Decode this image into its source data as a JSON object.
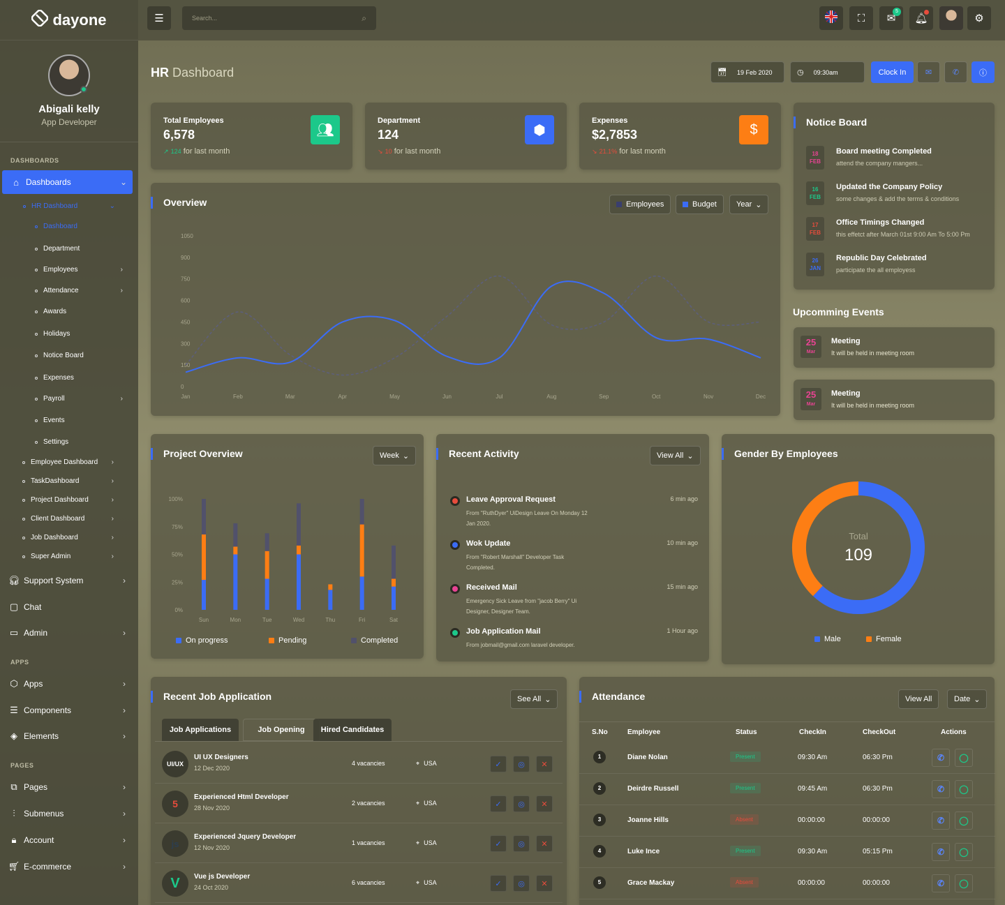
{
  "app": {
    "brand": "dayone"
  },
  "user": {
    "name": "Abigali kelly",
    "role": "App Developer"
  },
  "sidebar": {
    "sections": {
      "dashboards": "DASHBOARDS",
      "apps": "APPS",
      "pages": "PAGES"
    },
    "active": "Dashboards",
    "hr_group": "HR Dashboard",
    "hr_items": [
      "Dashboard",
      "Department",
      "Employees",
      "Attendance",
      "Awards",
      "Holidays",
      "Notice Board",
      "Expenses",
      "Payroll",
      "Events",
      "Settings"
    ],
    "dash_items": [
      "Employee Dashboard",
      "TaskDashboard",
      "Project Dashboard",
      "Client Dashboard",
      "Job Dashboard",
      "Super Admin"
    ],
    "main_items": [
      "Support System",
      "Chat",
      "Admin"
    ],
    "app_items": [
      "Apps",
      "Components",
      "Elements"
    ],
    "page_items": [
      "Pages",
      "Submenus",
      "Account",
      "E-commerce"
    ]
  },
  "topbar": {
    "search_placeholder": "Search...",
    "mail_count": "5"
  },
  "page": {
    "title_bold": "HR",
    "title_rest": "Dashboard",
    "date": "19 Feb 2020",
    "time": "09:30am",
    "clock_in": "Clock In"
  },
  "stats": [
    {
      "label": "Total Employees",
      "value": "6,578",
      "change": "124",
      "sub": "for last month",
      "color": "#1cc88a",
      "icon": "users-icon"
    },
    {
      "label": "Department",
      "value": "124",
      "change": "10",
      "sub": "for last month",
      "color": "#3b6cf6",
      "icon": "cube-icon"
    },
    {
      "label": "Expenses",
      "value": "$2,7853",
      "change": "21.1%",
      "sub": "for last month",
      "color": "#fd7e14",
      "icon": "dollar-icon"
    }
  ],
  "overview": {
    "title": "Overview",
    "legend": [
      "Employees",
      "Budget"
    ],
    "filter": "Year"
  },
  "chart_data": [
    {
      "type": "line",
      "title": "Overview",
      "categories": [
        "Jan",
        "Feb",
        "Mar",
        "Apr",
        "May",
        "Jun",
        "Jul",
        "Aug",
        "Sep",
        "Oct",
        "Nov",
        "Dec"
      ],
      "y_ticks": [
        0,
        150,
        300,
        450,
        600,
        750,
        900,
        1050
      ],
      "ylim": [
        0,
        1050
      ],
      "series": [
        {
          "name": "Budget",
          "color": "#3b6cf6",
          "values": [
            100,
            200,
            170,
            450,
            460,
            210,
            200,
            700,
            650,
            340,
            330,
            200
          ]
        },
        {
          "name": "Employees",
          "color": "#5b5f8a",
          "values": [
            150,
            520,
            220,
            80,
            200,
            490,
            770,
            430,
            450,
            770,
            450,
            450
          ]
        }
      ]
    },
    {
      "type": "bar",
      "title": "Project Overview",
      "categories": [
        "Sun",
        "Mon",
        "Tue",
        "Wed",
        "Thu",
        "Fri",
        "Sat"
      ],
      "y_ticks": [
        "0%",
        "25%",
        "50%",
        "75%",
        "100%"
      ],
      "ylim": [
        0,
        100
      ],
      "series": [
        {
          "name": "On progress",
          "color": "#3b6cf6",
          "values": [
            27,
            50,
            28,
            50,
            18,
            30,
            21
          ]
        },
        {
          "name": "Pending",
          "color": "#fd7e14",
          "values": [
            41,
            7,
            25,
            8,
            5,
            47,
            7
          ]
        },
        {
          "name": "Completed",
          "color": "#51516b",
          "values": [
            32,
            21,
            16,
            38,
            0,
            23,
            30
          ]
        }
      ]
    },
    {
      "type": "pie",
      "title": "Gender By Employees",
      "total_label": "Total",
      "total": "109",
      "slices": [
        {
          "name": "Male",
          "color": "#3b6cf6",
          "value": 62
        },
        {
          "name": "Female",
          "color": "#fd7e14",
          "value": 38
        }
      ]
    }
  ],
  "project": {
    "title": "Project Overview",
    "filter": "Week"
  },
  "notice": {
    "title": "Notice Board",
    "items": [
      {
        "day": "18",
        "month": "FEB",
        "color": "#e84393",
        "title": "Board meeting Completed",
        "text": "attend the company mangers..."
      },
      {
        "day": "16",
        "month": "FEB",
        "color": "#1cc88a",
        "title": "Updated the Company Policy",
        "text": "some changes & add the terms & conditions"
      },
      {
        "day": "17",
        "month": "FEB",
        "color": "#e74c3c",
        "title": "Office Timings Changed",
        "text": "this effetct after March 01st 9:00 Am To 5:00 Pm"
      },
      {
        "day": "26",
        "month": "JAN",
        "color": "#3b6cf6",
        "title": "Republic Day Celebrated",
        "text": "participate the all employess"
      }
    ]
  },
  "events": {
    "title": "Upcomming Events",
    "items": [
      {
        "day": "25",
        "month": "Mar",
        "title": "Meeting",
        "text": "It will be held in meeting room"
      },
      {
        "day": "25",
        "month": "Mar",
        "title": "Meeting",
        "text": "It will be held in meeting room"
      }
    ]
  },
  "activity": {
    "title": "Recent Activity",
    "filter": "View All",
    "items": [
      {
        "color": "#e74c3c",
        "title": "Leave Approval Request",
        "desc": "From \"RuthDyer\" UiDesign Leave On Monday 12 Jan 2020.",
        "time": "6 min ago"
      },
      {
        "color": "#3b6cf6",
        "title": "Wok Update",
        "desc": "From \"Robert Marshall\" Developer Task Completed.",
        "time": "10 min ago"
      },
      {
        "color": "#e84393",
        "title": "Received Mail",
        "desc": "Emergency Sick Leave from \"jacob Berry\" Ui Designer, Designer Team.",
        "time": "15 min ago"
      },
      {
        "color": "#1cc88a",
        "title": "Job Application Mail",
        "desc": "From jobmail@gmail.com laravel developer.",
        "time": "1 Hour ago"
      }
    ]
  },
  "gender": {
    "title": "Gender By Employees"
  },
  "jobs": {
    "title": "Recent Job Application",
    "filter": "See All",
    "tabs": [
      "Job Applications",
      "Job Opening",
      "Hired Candidates"
    ],
    "rows": [
      {
        "icon": "UI/UX",
        "title": "UI UX Designers",
        "date": "12 Dec 2020",
        "vacancies": "4 vacancies",
        "location": "USA"
      },
      {
        "icon": "5",
        "title": "Experienced Html Developer",
        "date": "28 Nov 2020",
        "vacancies": "2 vacancies",
        "location": "USA"
      },
      {
        "icon": "js",
        "title": "Experienced Jquery Developer",
        "date": "12 Nov 2020",
        "vacancies": "1 vacancies",
        "location": "USA"
      },
      {
        "icon": "V",
        "title": "Vue js Developer",
        "date": "24 Oct 2020",
        "vacancies": "6 vacancies",
        "location": "USA"
      }
    ]
  },
  "attendance": {
    "title": "Attendance",
    "view_all": "View All",
    "filter": "Date",
    "headers": [
      "S.No",
      "Employee",
      "Status",
      "CheckIn",
      "CheckOut",
      "Actions"
    ],
    "rows": [
      {
        "no": "1",
        "name": "Diane Nolan",
        "status": "Present",
        "in": "09:30 Am",
        "out": "06:30 Pm"
      },
      {
        "no": "2",
        "name": "Deirdre Russell",
        "status": "Present",
        "in": "09:45 Am",
        "out": "06:30 Pm"
      },
      {
        "no": "3",
        "name": "Joanne Hills",
        "status": "Absent",
        "in": "00:00:00",
        "out": "00:00:00"
      },
      {
        "no": "4",
        "name": "Luke Ince",
        "status": "Present",
        "in": "09:30 Am",
        "out": "05:15 Pm"
      },
      {
        "no": "5",
        "name": "Grace Mackay",
        "status": "Absent",
        "in": "00:00:00",
        "out": "00:00:00"
      }
    ]
  }
}
